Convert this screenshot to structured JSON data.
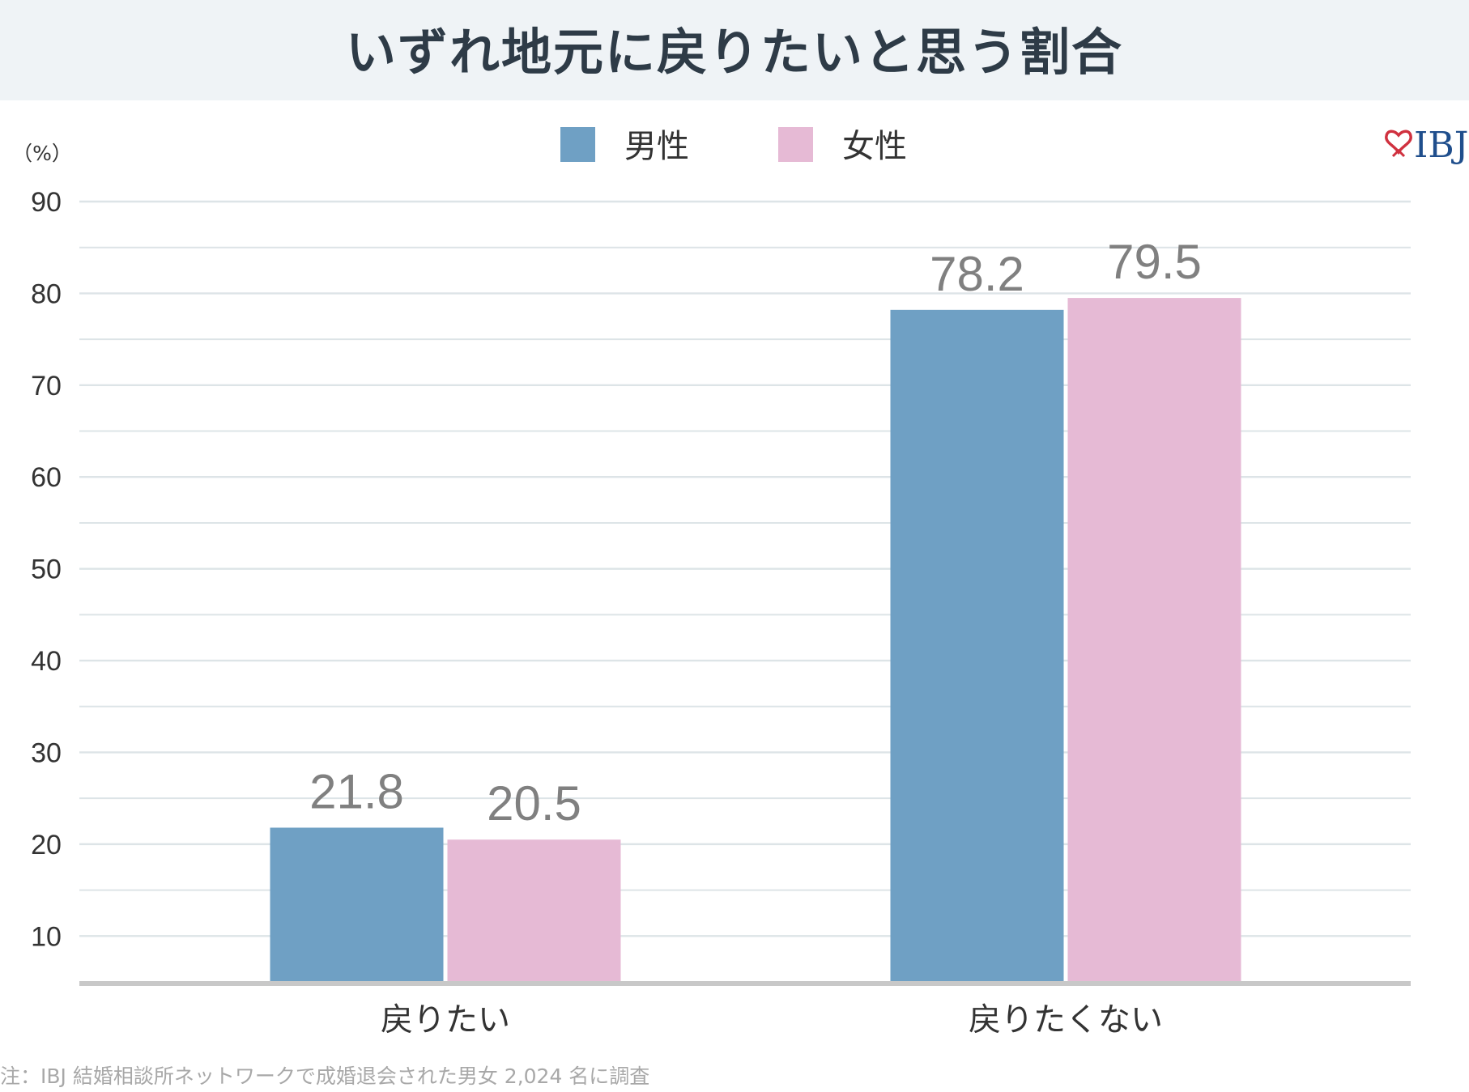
{
  "title": "いずれ地元に戻りたいと思う割合",
  "logo": {
    "text": "IBJ",
    "heart_color": "#d0313f",
    "text_color": "#1f4e8c"
  },
  "footnote": "注：IBJ 結婚相談所ネットワークで成婚退会された男女 2,024 名に調査",
  "chart_data": {
    "type": "bar",
    "title": "いずれ地元に戻りたいと思う割合",
    "ylabel": "（%）",
    "xlabel": "",
    "ylim": [
      5,
      90
    ],
    "yticks": [
      10,
      20,
      30,
      40,
      50,
      60,
      70,
      80,
      90
    ],
    "grid": true,
    "legend": "top-center",
    "categories": [
      "戻りたい",
      "戻りたくない"
    ],
    "series": [
      {
        "name": "男性",
        "color": "#6fa0c4",
        "values": [
          21.8,
          78.2
        ]
      },
      {
        "name": "女性",
        "color": "#e6bad5",
        "values": [
          20.5,
          79.5
        ]
      }
    ]
  }
}
